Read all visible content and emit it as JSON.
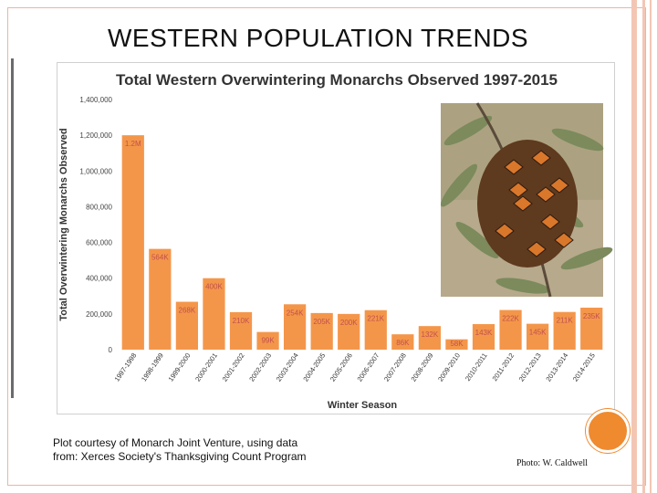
{
  "slide": {
    "title": "WESTERN POPULATION TRENDS",
    "caption_line1": "Plot courtesy of Monarch Joint Venture, using data",
    "caption_line2": "from: Xerces Society's Thanksgiving Count Program",
    "photo_credit": "Photo: W. Caldwell",
    "accent_color": "#ef8a2f"
  },
  "chart_data": {
    "type": "bar",
    "title": "Total Western Overwintering Monarchs Observed 1997-2015",
    "xlabel": "Winter Season",
    "ylabel": "Total Overwintering Monarchs Observed",
    "ylim": [
      0,
      1400000
    ],
    "yticks": [
      0,
      200000,
      400000,
      600000,
      800000,
      1000000,
      1200000,
      1400000
    ],
    "ytick_labels": [
      "0",
      "200,000",
      "400,000",
      "600,000",
      "800,000",
      "1,000,000",
      "1,200,000",
      "1,400,000"
    ],
    "grid": false,
    "bar_color": "#f4964a",
    "label_color": "#c0504d",
    "categories": [
      "1997-1998",
      "1998-1999",
      "1999-2000",
      "2000-2001",
      "2001-2002",
      "2002-2003",
      "2003-2004",
      "2004-2005",
      "2005-2006",
      "2006-2007",
      "2007-2008",
      "2008-2009",
      "2009-2010",
      "2010-2011",
      "2011-2012",
      "2012-2013",
      "2013-2014",
      "2014-2015"
    ],
    "values": [
      1200000,
      564000,
      268000,
      400000,
      210000,
      99000,
      254000,
      205000,
      200000,
      221000,
      86000,
      132000,
      58000,
      143000,
      222000,
      145000,
      211000,
      235000
    ],
    "data_labels": [
      "1.2M",
      "564K",
      "268K",
      "400K",
      "210K",
      "99K",
      "254K",
      "205K",
      "200K",
      "221K",
      "86K",
      "132K",
      "58K",
      "143K",
      "222K",
      "145K",
      "211K",
      "235K"
    ]
  },
  "photo": {
    "subject": "monarch butterfly cluster on eucalyptus branches"
  }
}
